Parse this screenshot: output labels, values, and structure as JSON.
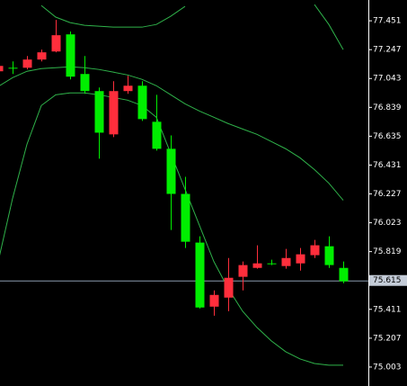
{
  "chart_data": {
    "type": "candlestick",
    "ylim": [
      74.869,
      77.598
    ],
    "yticks": [
      77.451,
      77.247,
      77.043,
      76.839,
      76.635,
      76.431,
      76.227,
      76.023,
      75.819,
      75.615,
      75.411,
      75.207,
      75.003
    ],
    "current_price_tick": 9,
    "up_color": "#ff2e3c",
    "down_color": "#00ee00",
    "band_color": "#2fb24a",
    "price_line_color": "#8a9aae",
    "open": [
      77.094,
      77.119,
      77.119,
      77.177,
      77.234,
      77.355,
      77.075,
      76.954,
      76.648,
      76.954,
      76.992,
      76.737,
      76.546,
      76.227,
      75.883,
      75.43,
      75.494,
      75.641,
      75.704,
      75.736,
      75.717,
      75.736,
      75.794,
      75.857,
      75.704
    ],
    "high": [
      77.151,
      77.164,
      77.202,
      77.247,
      77.457,
      77.375,
      77.202,
      76.979,
      77.024,
      77.062,
      77.024,
      76.928,
      76.641,
      76.348,
      75.927,
      75.545,
      75.774,
      75.749,
      75.864,
      75.762,
      75.838,
      75.845,
      75.902,
      75.927,
      75.749
    ],
    "low": [
      77.075,
      77.075,
      77.107,
      77.164,
      77.228,
      77.037,
      76.935,
      76.476,
      76.629,
      76.935,
      76.743,
      76.533,
      75.972,
      75.845,
      75.417,
      75.366,
      75.398,
      75.545,
      75.698,
      75.724,
      75.698,
      75.685,
      75.774,
      75.704,
      75.596
    ],
    "close": [
      77.132,
      77.119,
      77.177,
      77.228,
      77.349,
      77.056,
      76.954,
      76.66,
      76.954,
      76.992,
      76.756,
      76.546,
      76.227,
      75.889,
      75.424,
      75.513,
      75.634,
      75.724,
      75.736,
      75.736,
      75.774,
      75.8,
      75.864,
      75.724,
      75.609
    ],
    "bands": [
      {
        "values": [
          null,
          null,
          null,
          77.559,
          77.477,
          77.438,
          77.419,
          77.413,
          77.406,
          77.406,
          77.406,
          77.425,
          77.483,
          77.553,
          null,
          null,
          null,
          null,
          null,
          null,
          null,
          null,
          77.566,
          77.425,
          77.247
        ]
      },
      {
        "values": [
          76.986,
          77.049,
          77.094,
          77.113,
          77.119,
          77.126,
          77.119,
          77.107,
          77.088,
          77.068,
          77.037,
          76.992,
          76.928,
          76.864,
          76.813,
          76.769,
          76.724,
          76.686,
          76.648,
          76.597,
          76.546,
          76.482,
          76.399,
          76.303,
          76.182
        ]
      },
      {
        "values": [
          75.749,
          76.195,
          76.578,
          76.852,
          76.928,
          76.941,
          76.941,
          76.928,
          76.909,
          76.89,
          76.852,
          76.769,
          76.514,
          76.259,
          76.004,
          75.749,
          75.558,
          75.398,
          75.283,
          75.188,
          75.111,
          75.06,
          75.028,
          75.016,
          75.016
        ]
      }
    ]
  }
}
